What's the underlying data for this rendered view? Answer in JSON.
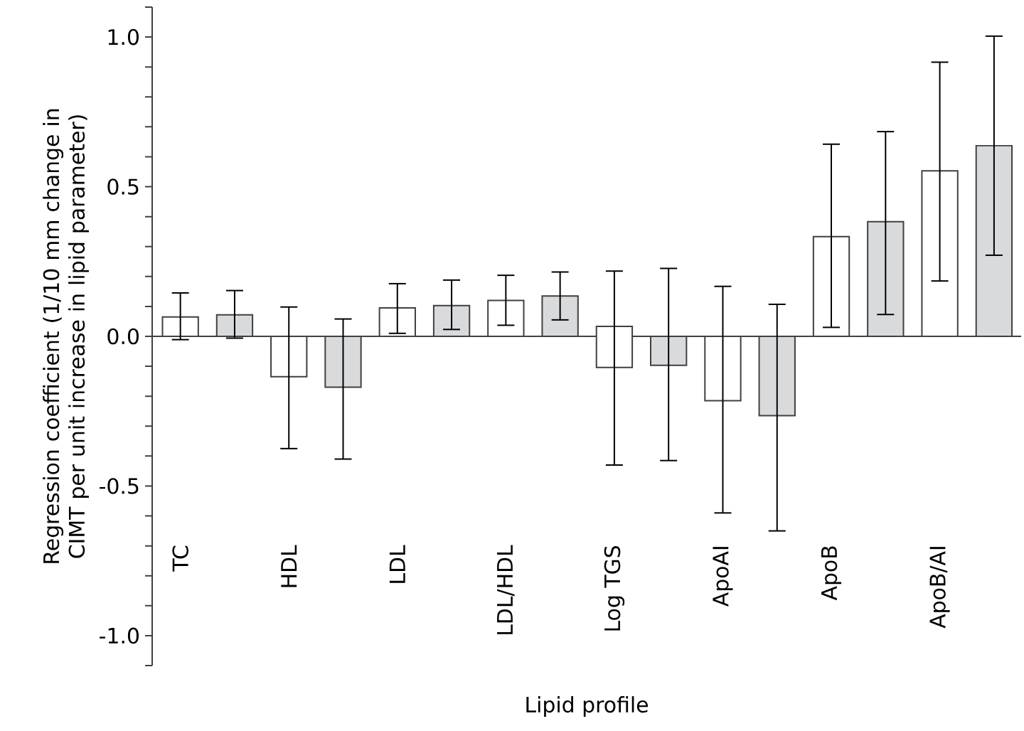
{
  "chart_data": {
    "type": "bar",
    "xlabel": "Lipid profile",
    "ylabel": "Regression coefficient (1/10 mm change in CIMT per unit increase in lipid parameter)",
    "categories": [
      "TC",
      "HDL",
      "LDL",
      "LDL/HDL",
      "Log TGS",
      "ApoAI",
      "ApoB",
      "ApoB/AI"
    ],
    "series": [
      {
        "color": "#ffffff",
        "base": [
          0,
          0,
          0,
          0,
          0.033,
          0,
          0,
          0
        ],
        "values": [
          0.065,
          -0.135,
          0.095,
          0.12,
          -0.137,
          -0.215,
          0.333,
          0.553
        ],
        "errors": [
          [
            -0.011,
            0.145
          ],
          [
            -0.375,
            0.098
          ],
          [
            0.01,
            0.176
          ],
          [
            0.037,
            0.204
          ],
          [
            -0.43,
            0.218
          ],
          [
            -0.59,
            0.167
          ],
          [
            0.03,
            0.642
          ],
          [
            0.185,
            0.916
          ]
        ]
      },
      {
        "color": "#d9dadc",
        "values": [
          0.072,
          -0.17,
          0.103,
          0.135,
          -0.097,
          -0.265,
          0.383,
          0.637
        ],
        "errors": [
          [
            -0.006,
            0.153
          ],
          [
            -0.41,
            0.058
          ],
          [
            0.023,
            0.188
          ],
          [
            0.055,
            0.215
          ],
          [
            -0.415,
            0.227
          ],
          [
            -0.65,
            0.107
          ],
          [
            0.073,
            0.684
          ],
          [
            0.271,
            1.003
          ]
        ]
      }
    ],
    "ylim": [
      -1.1,
      1.1
    ],
    "yticks": [
      {
        "value": -1.1,
        "label": null
      },
      {
        "value": -1.0,
        "label": "-1.0"
      },
      {
        "value": -0.9,
        "label": null
      },
      {
        "value": -0.8,
        "label": null
      },
      {
        "value": -0.7,
        "label": null
      },
      {
        "value": -0.6,
        "label": null
      },
      {
        "value": -0.5,
        "label": "-0.5"
      },
      {
        "value": -0.4,
        "label": null
      },
      {
        "value": -0.3,
        "label": null
      },
      {
        "value": -0.2,
        "label": null
      },
      {
        "value": -0.1,
        "label": null
      },
      {
        "value": 0,
        "label": "0.0"
      },
      {
        "value": 0.1,
        "label": null
      },
      {
        "value": 0.2,
        "label": null
      },
      {
        "value": 0.3,
        "label": null
      },
      {
        "value": 0.4,
        "label": null
      },
      {
        "value": 0.5,
        "label": "0.5"
      },
      {
        "value": 0.6,
        "label": null
      },
      {
        "value": 0.7,
        "label": null
      },
      {
        "value": 0.8,
        "label": null
      },
      {
        "value": 0.9,
        "label": null
      },
      {
        "value": 1.0,
        "label": "1.0"
      },
      {
        "value": 1.1,
        "label": null
      }
    ]
  }
}
